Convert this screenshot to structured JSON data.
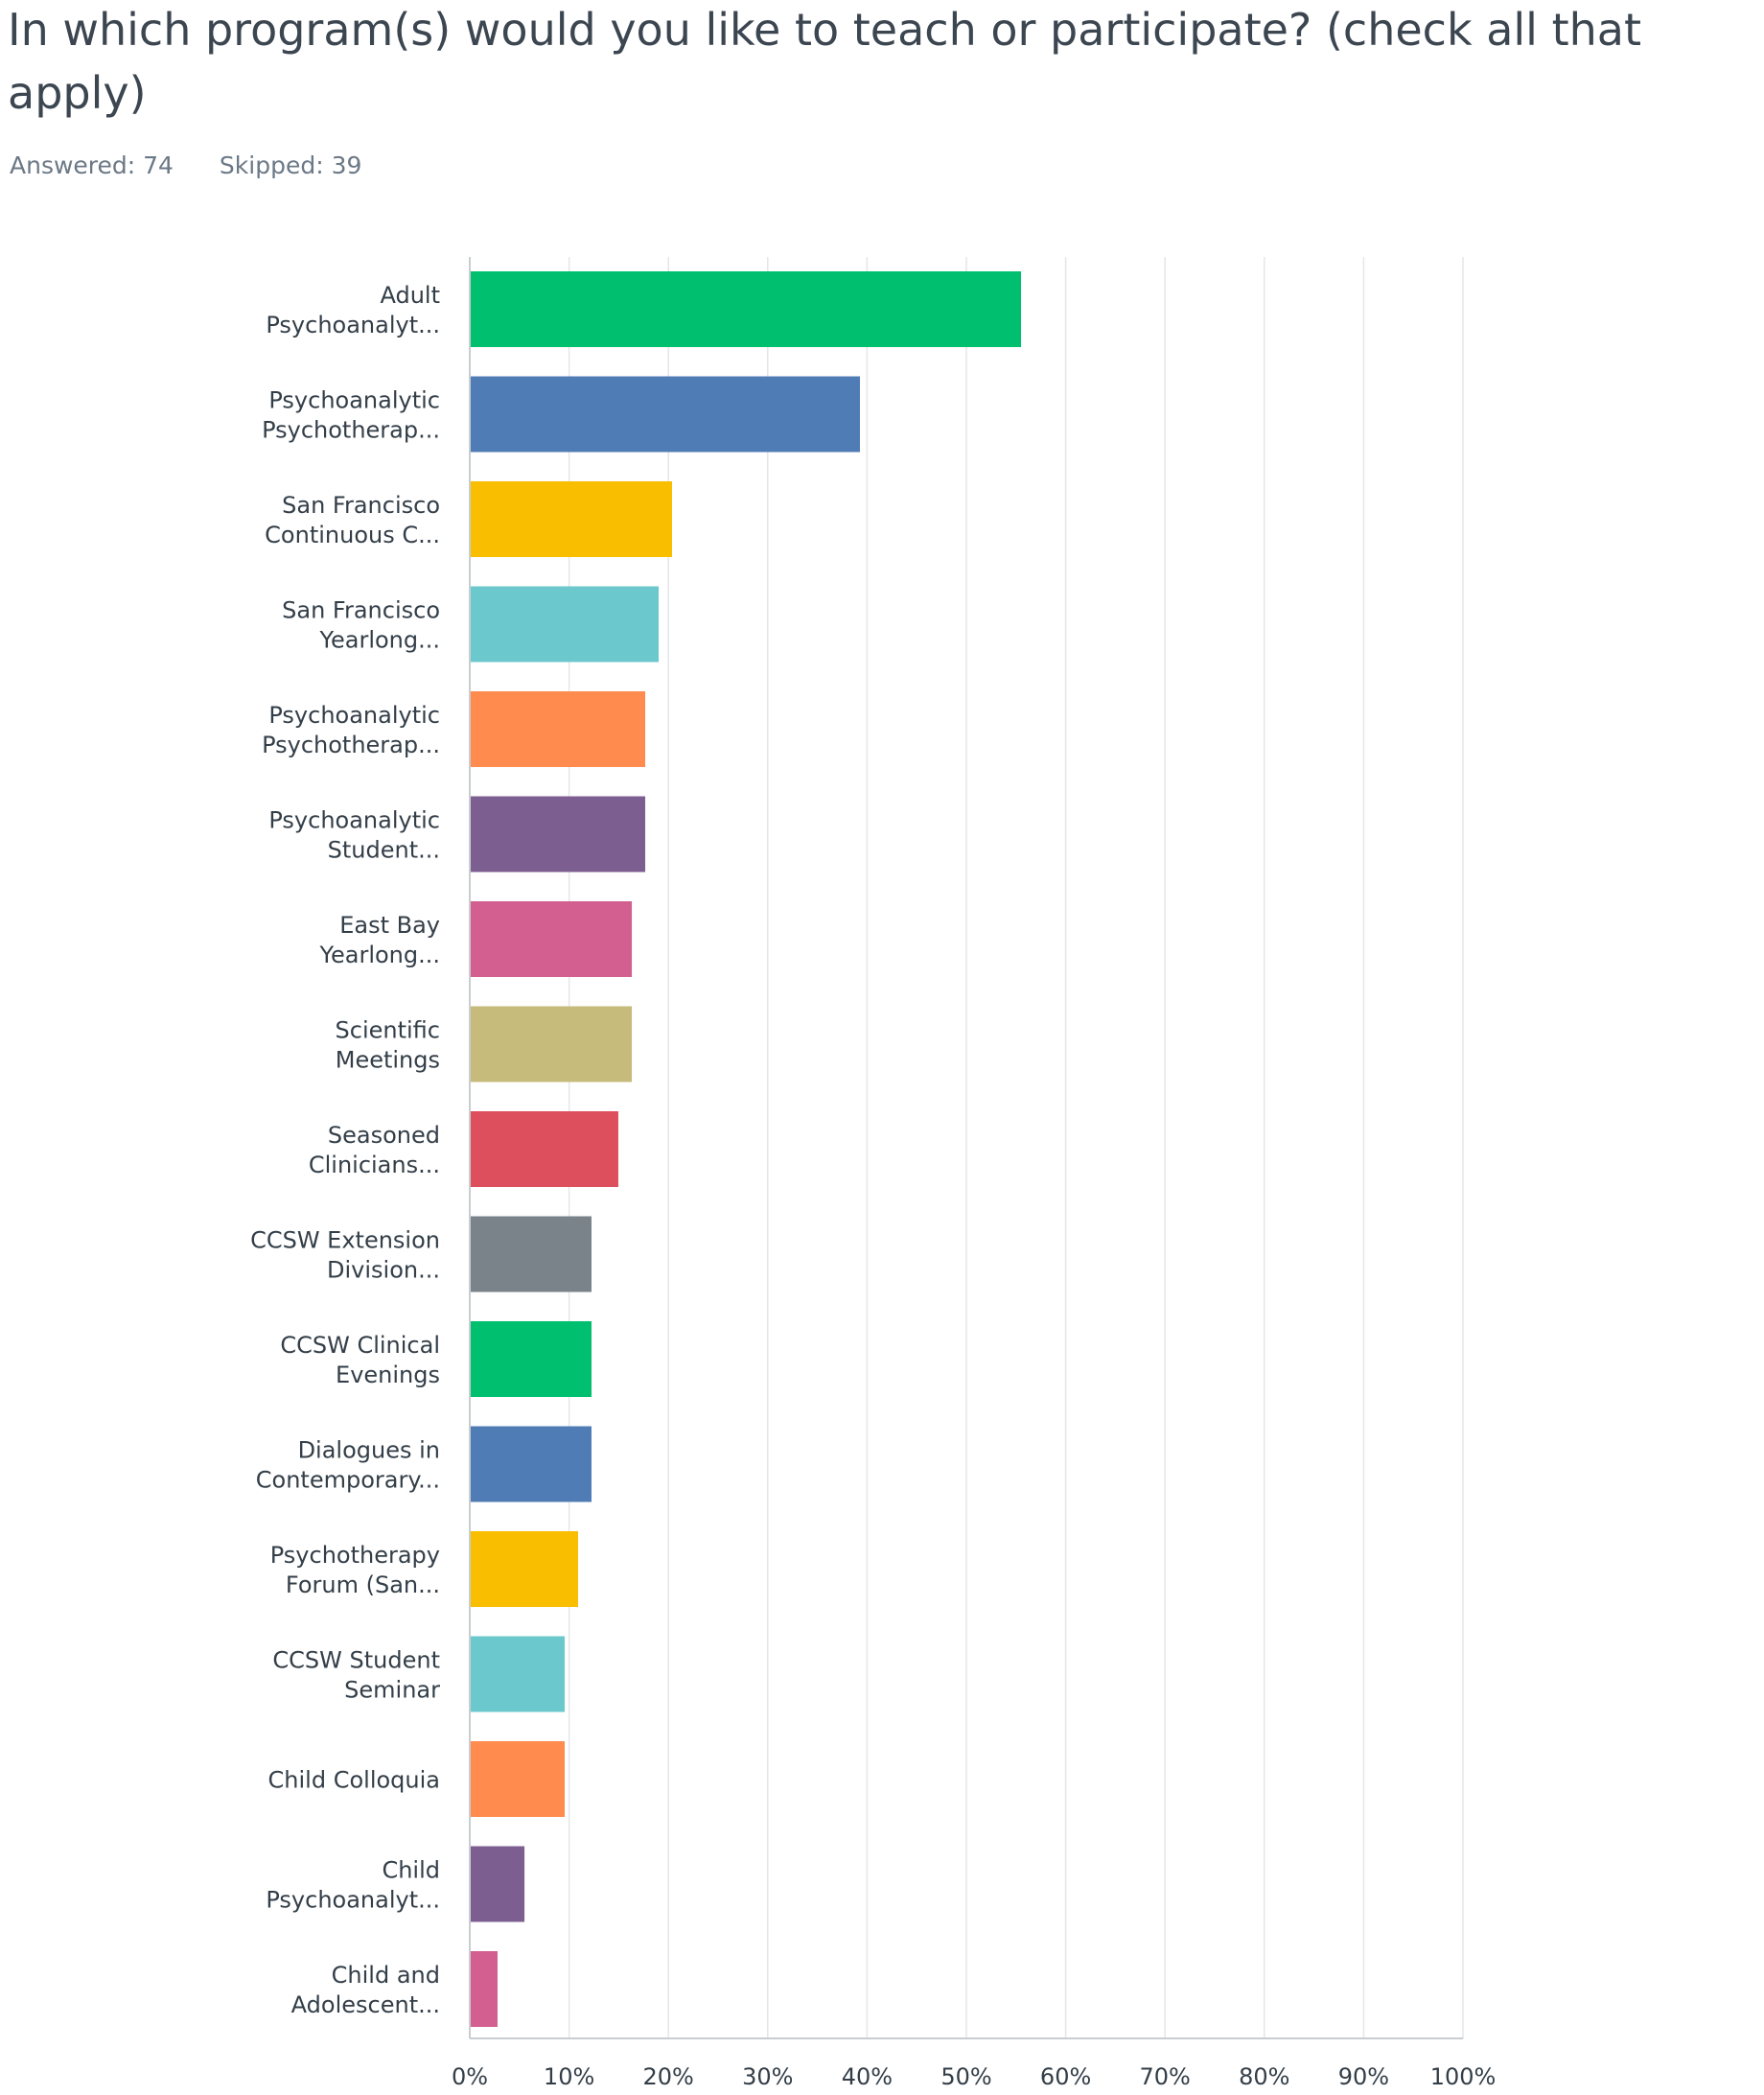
{
  "question": {
    "title": "In which program(s) would you like to teach or participate? (check all that apply)",
    "answered_label": "Answered: 74",
    "skipped_label": "Skipped: 39"
  },
  "chart_data": {
    "type": "bar",
    "orientation": "horizontal",
    "categories": [
      [
        "Adult",
        "Psychoanalyt..."
      ],
      [
        "Psychoanalytic",
        "Psychotherap..."
      ],
      [
        "San Francisco",
        "Continuous C..."
      ],
      [
        "San Francisco",
        "Yearlong..."
      ],
      [
        "Psychoanalytic",
        "Psychotherap..."
      ],
      [
        "Psychoanalytic",
        "Student..."
      ],
      [
        "East Bay",
        "Yearlong..."
      ],
      [
        "Scientific",
        "Meetings"
      ],
      [
        "Seasoned",
        "Clinicians..."
      ],
      [
        "CCSW Extension",
        "Division..."
      ],
      [
        "CCSW Clinical",
        "Evenings"
      ],
      [
        "Dialogues in",
        "Contemporary..."
      ],
      [
        "Psychotherapy",
        "Forum (San..."
      ],
      [
        "CCSW Student",
        "Seminar"
      ],
      [
        "Child Colloquia"
      ],
      [
        "Child",
        "Psychoanalyt..."
      ],
      [
        "Child and",
        "Adolescent..."
      ]
    ],
    "values": [
      55.41,
      39.19,
      20.27,
      18.92,
      17.57,
      17.57,
      16.22,
      16.22,
      14.86,
      12.16,
      12.16,
      12.16,
      10.81,
      9.46,
      9.46,
      5.41,
      2.7
    ],
    "colors": [
      "#00bf6f",
      "#507cb6",
      "#f9be00",
      "#6bc8cd",
      "#ff8b4f",
      "#7d5e90",
      "#d25f90",
      "#c6bb7b",
      "#dd4f5c",
      "#7a828a",
      "#00bf6f",
      "#507cb6",
      "#f9be00",
      "#6bc8cd",
      "#ff8b4f",
      "#7d5e90",
      "#d25f90"
    ],
    "xlim": [
      0,
      100
    ],
    "xticks": [
      "0%",
      "10%",
      "20%",
      "30%",
      "40%",
      "50%",
      "60%",
      "70%",
      "80%",
      "90%",
      "100%"
    ],
    "grid": true,
    "title": "",
    "xlabel": "",
    "ylabel": ""
  }
}
